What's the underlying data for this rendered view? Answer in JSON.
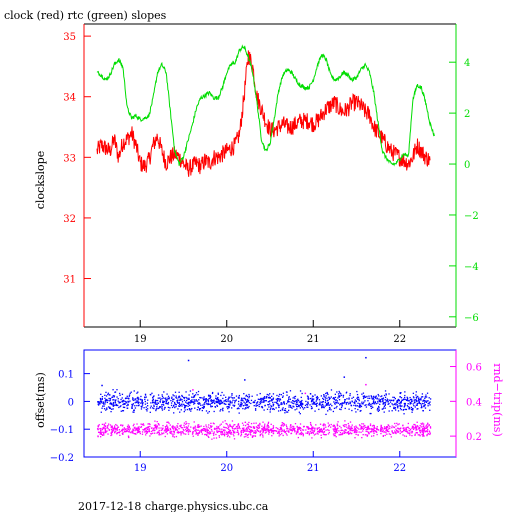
{
  "colors": {
    "clock": "#ff0000",
    "rtc": "#00dd00",
    "offset": "#0000ff",
    "rtt": "#ff00ff",
    "frame": "#000000"
  },
  "footer": "2017-12-18 charge.physics.ubc.ca",
  "chart_data": [
    {
      "type": "line",
      "title": "clock (red) rtc (green) slopes",
      "ylabel": "clockslope",
      "ylabel_right": "",
      "xlim": [
        18.35,
        22.65
      ],
      "xticks": [
        19,
        20,
        21,
        22
      ],
      "ylim": [
        30.2,
        35.2
      ],
      "yticks": [
        31,
        32,
        33,
        34,
        35
      ],
      "ylim_right": [
        -6.4,
        5.5
      ],
      "yticks_right": [
        -6,
        -4,
        -2,
        0,
        2,
        4
      ],
      "series": [
        {
          "axis": "left",
          "color": "#ff0000",
          "points": [
            [
              18.5,
              33.1
            ],
            [
              18.55,
              33.2
            ],
            [
              18.6,
              33.15
            ],
            [
              18.65,
              33.1
            ],
            [
              18.7,
              33.3
            ],
            [
              18.75,
              33.0
            ],
            [
              18.8,
              33.25
            ],
            [
              18.85,
              33.3
            ],
            [
              18.9,
              33.4
            ],
            [
              18.95,
              33.2
            ],
            [
              19.0,
              32.9
            ],
            [
              19.05,
              32.85
            ],
            [
              19.1,
              32.95
            ],
            [
              19.15,
              33.2
            ],
            [
              19.2,
              33.35
            ],
            [
              19.25,
              33.1
            ],
            [
              19.3,
              32.9
            ],
            [
              19.35,
              33.0
            ],
            [
              19.4,
              33.05
            ],
            [
              19.45,
              33.0
            ],
            [
              19.5,
              32.9
            ],
            [
              19.55,
              32.8
            ],
            [
              19.6,
              32.85
            ],
            [
              19.65,
              32.9
            ],
            [
              19.7,
              32.85
            ],
            [
              19.75,
              32.95
            ],
            [
              19.8,
              32.9
            ],
            [
              19.85,
              33.0
            ],
            [
              19.9,
              33.0
            ],
            [
              19.95,
              33.05
            ],
            [
              20.0,
              33.1
            ],
            [
              20.05,
              33.15
            ],
            [
              20.1,
              33.2
            ],
            [
              20.15,
              33.4
            ],
            [
              20.2,
              34.0
            ],
            [
              20.25,
              34.7
            ],
            [
              20.3,
              34.5
            ],
            [
              20.35,
              34.0
            ],
            [
              20.4,
              33.8
            ],
            [
              20.45,
              33.6
            ],
            [
              20.5,
              33.45
            ],
            [
              20.55,
              33.45
            ],
            [
              20.6,
              33.5
            ],
            [
              20.65,
              33.55
            ],
            [
              20.7,
              33.5
            ],
            [
              20.75,
              33.5
            ],
            [
              20.8,
              33.55
            ],
            [
              20.85,
              33.6
            ],
            [
              20.9,
              33.6
            ],
            [
              20.95,
              33.6
            ],
            [
              21.0,
              33.55
            ],
            [
              21.05,
              33.6
            ],
            [
              21.1,
              33.7
            ],
            [
              21.15,
              33.8
            ],
            [
              21.2,
              33.85
            ],
            [
              21.25,
              33.9
            ],
            [
              21.3,
              33.8
            ],
            [
              21.35,
              33.75
            ],
            [
              21.4,
              33.8
            ],
            [
              21.45,
              33.9
            ],
            [
              21.5,
              33.9
            ],
            [
              21.55,
              33.85
            ],
            [
              21.6,
              33.75
            ],
            [
              21.65,
              33.7
            ],
            [
              21.7,
              33.5
            ],
            [
              21.75,
              33.4
            ],
            [
              21.8,
              33.3
            ],
            [
              21.85,
              33.2
            ],
            [
              21.9,
              33.1
            ],
            [
              21.95,
              33.05
            ],
            [
              22.0,
              33.0
            ],
            [
              22.05,
              32.95
            ],
            [
              22.1,
              32.9
            ],
            [
              22.15,
              33.0
            ],
            [
              22.2,
              33.2
            ],
            [
              22.25,
              33.1
            ],
            [
              22.3,
              33.0
            ],
            [
              22.35,
              32.95
            ]
          ]
        },
        {
          "axis": "right",
          "color": "#00dd00",
          "points": [
            [
              18.5,
              3.6
            ],
            [
              18.55,
              3.5
            ],
            [
              18.6,
              3.3
            ],
            [
              18.65,
              3.5
            ],
            [
              18.7,
              3.9
            ],
            [
              18.75,
              4.1
            ],
            [
              18.8,
              3.8
            ],
            [
              18.85,
              2.2
            ],
            [
              18.9,
              1.8
            ],
            [
              18.95,
              1.9
            ],
            [
              19.0,
              1.75
            ],
            [
              19.05,
              1.8
            ],
            [
              19.1,
              1.9
            ],
            [
              19.15,
              2.6
            ],
            [
              19.2,
              3.6
            ],
            [
              19.25,
              3.9
            ],
            [
              19.3,
              3.6
            ],
            [
              19.35,
              2.0
            ],
            [
              19.4,
              0.5
            ],
            [
              19.45,
              0.0
            ],
            [
              19.5,
              0.3
            ],
            [
              19.55,
              0.9
            ],
            [
              19.6,
              1.5
            ],
            [
              19.65,
              2.2
            ],
            [
              19.7,
              2.6
            ],
            [
              19.75,
              2.7
            ],
            [
              19.8,
              2.8
            ],
            [
              19.85,
              2.6
            ],
            [
              19.9,
              2.6
            ],
            [
              19.95,
              3.0
            ],
            [
              20.0,
              3.6
            ],
            [
              20.05,
              3.9
            ],
            [
              20.1,
              4.0
            ],
            [
              20.15,
              4.5
            ],
            [
              20.2,
              4.6
            ],
            [
              20.25,
              4.2
            ],
            [
              20.3,
              3.6
            ],
            [
              20.35,
              2.4
            ],
            [
              20.4,
              1.0
            ],
            [
              20.45,
              0.5
            ],
            [
              20.5,
              0.8
            ],
            [
              20.55,
              1.8
            ],
            [
              20.6,
              2.9
            ],
            [
              20.65,
              3.5
            ],
            [
              20.7,
              3.7
            ],
            [
              20.75,
              3.6
            ],
            [
              20.8,
              3.3
            ],
            [
              20.85,
              3.1
            ],
            [
              20.9,
              3.0
            ],
            [
              20.95,
              3.0
            ],
            [
              21.0,
              3.3
            ],
            [
              21.05,
              3.9
            ],
            [
              21.1,
              4.3
            ],
            [
              21.15,
              4.1
            ],
            [
              21.2,
              3.5
            ],
            [
              21.25,
              3.3
            ],
            [
              21.3,
              3.4
            ],
            [
              21.35,
              3.6
            ],
            [
              21.4,
              3.5
            ],
            [
              21.45,
              3.3
            ],
            [
              21.5,
              3.4
            ],
            [
              21.55,
              3.7
            ],
            [
              21.6,
              3.9
            ],
            [
              21.65,
              3.6
            ],
            [
              21.7,
              2.8
            ],
            [
              21.75,
              1.6
            ],
            [
              21.8,
              0.5
            ],
            [
              21.85,
              0.2
            ],
            [
              21.9,
              0.0
            ],
            [
              21.95,
              0.0
            ],
            [
              22.0,
              0.2
            ],
            [
              22.05,
              0.4
            ],
            [
              22.1,
              0.3
            ],
            [
              22.15,
              2.5
            ],
            [
              22.2,
              3.1
            ],
            [
              22.25,
              3.0
            ],
            [
              22.3,
              2.4
            ],
            [
              22.35,
              1.6
            ],
            [
              22.4,
              1.1
            ]
          ]
        }
      ]
    },
    {
      "type": "scatter",
      "ylabel": "offset(ms)",
      "ylabel_right": "rnd−trip(ms)",
      "xlim": [
        18.35,
        22.65
      ],
      "xticks": [
        19,
        20,
        21,
        22
      ],
      "ylim": [
        -0.2,
        0.185
      ],
      "yticks": [
        -0.2,
        -0.1,
        0,
        0.1
      ],
      "ytick_labels": [
        "−0.2",
        "−0.1",
        "0",
        "0.1"
      ],
      "ylim_right": [
        0.08,
        0.695
      ],
      "yticks_right": [
        0.2,
        0.4,
        0.6
      ],
      "ytick_labels_right": [
        "0.2",
        "0.4",
        "0.6"
      ],
      "series": [
        {
          "axis": "left",
          "color": "#0000ff",
          "x_range": [
            18.5,
            22.35
          ],
          "center": 0.0,
          "spread": 0.03,
          "outliers": [
            [
              19.55,
              0.15
            ],
            [
              20.2,
              0.08
            ],
            [
              21.35,
              0.09
            ],
            [
              21.6,
              0.16
            ],
            [
              18.55,
              0.06
            ]
          ]
        },
        {
          "axis": "right",
          "color": "#ff00ff",
          "x_range": [
            18.5,
            22.35
          ],
          "center": 0.24,
          "spread": 0.035,
          "outliers": [
            [
              19.6,
              0.47
            ],
            [
              20.9,
              0.45
            ],
            [
              21.6,
              0.5
            ]
          ]
        }
      ]
    }
  ]
}
